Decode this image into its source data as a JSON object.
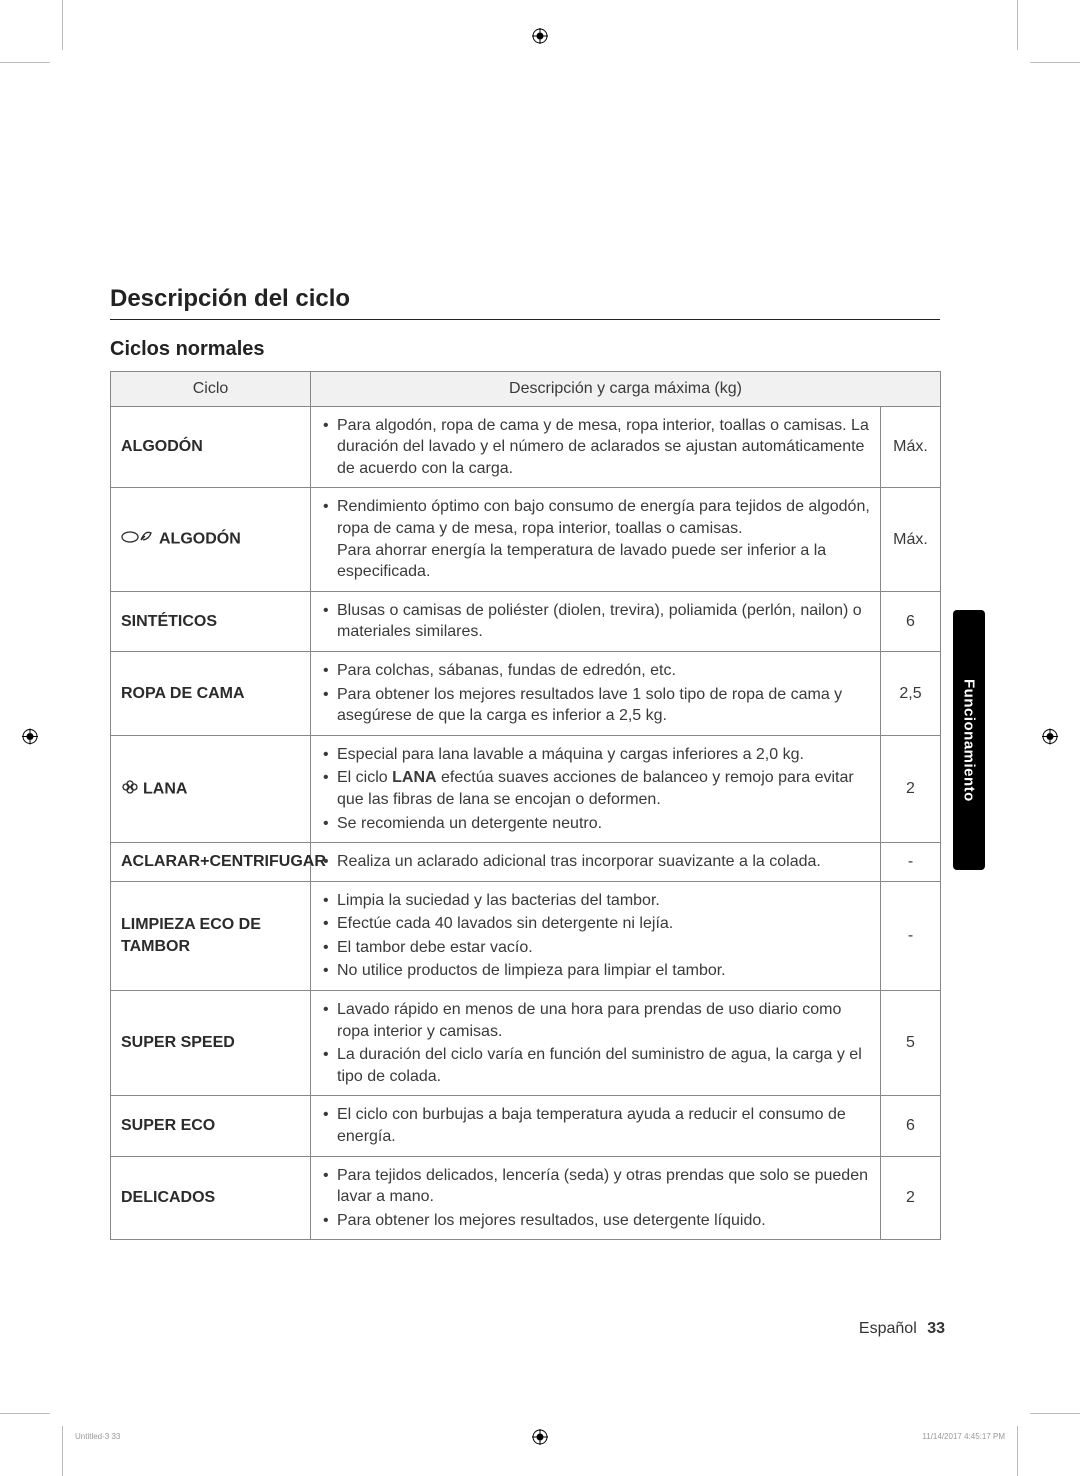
{
  "heading": "Descripción del ciclo",
  "subheading": "Ciclos normales",
  "table": {
    "header_cycle": "Ciclo",
    "header_desc": "Descripción y carga máxima (kg)",
    "rows": [
      {
        "name": "ALGODÓN",
        "icon": null,
        "items": [
          "Para algodón, ropa de cama y de mesa, ropa interior, toallas o camisas. La duración del lavado y el número de aclarados se ajustan automáticamente de acuerdo con la carga."
        ],
        "max": "Máx."
      },
      {
        "name": "ALGODÓN",
        "icon": "eco",
        "items": [
          "Rendimiento óptimo con bajo consumo de energía para tejidos de algodón, ropa de cama y de mesa, ropa interior, toallas o camisas.\nPara ahorrar energía la temperatura de lavado puede ser inferior a la especificada."
        ],
        "max": "Máx."
      },
      {
        "name": "SINTÉTICOS",
        "icon": null,
        "items": [
          "Blusas o camisas de poliéster (diolen, trevira), poliamida (perlón, nailon) o materiales similares."
        ],
        "max": "6"
      },
      {
        "name": "ROPA DE CAMA",
        "icon": null,
        "items": [
          "Para colchas, sábanas, fundas de edredón, etc.",
          "Para obtener los mejores resultados lave 1 solo tipo de ropa de cama y asegúrese de que la carga es inferior a 2,5 kg."
        ],
        "max": "2,5"
      },
      {
        "name": "LANA",
        "icon": "wool",
        "items": [
          "Especial para lana lavable a máquina y cargas inferiores a 2,0 kg.",
          "El ciclo LANA efectúa suaves acciones de balanceo y remojo para evitar que las fibras de lana se encojan o deformen.",
          "Se recomienda un detergente neutro."
        ],
        "max": "2"
      },
      {
        "name": "ACLARAR+CENTRIFUGAR",
        "icon": null,
        "items": [
          "Realiza un aclarado adicional tras incorporar suavizante a la colada."
        ],
        "max": "-"
      },
      {
        "name": "LIMPIEZA ECO DE TAMBOR",
        "icon": null,
        "items": [
          "Limpia la suciedad y las bacterias del tambor.",
          "Efectúe cada 40 lavados sin detergente ni lejía.",
          "El tambor debe estar vacío.",
          "No utilice productos de limpieza para limpiar el tambor."
        ],
        "max": "-"
      },
      {
        "name": "SUPER SPEED",
        "icon": null,
        "items": [
          "Lavado rápido en menos de una hora para prendas de uso diario como ropa interior y camisas.",
          "La duración del ciclo varía en función del suministro de agua, la carga y el tipo de colada."
        ],
        "max": "5"
      },
      {
        "name": "SUPER ECO",
        "icon": null,
        "items": [
          "El ciclo con burbujas a baja temperatura ayuda a reducir el consumo de energía."
        ],
        "max": "6"
      },
      {
        "name": "DELICADOS",
        "icon": null,
        "items": [
          "Para tejidos delicados, lencería (seda) y otras prendas que solo se pueden lavar a mano.",
          "Para obtener los mejores resultados, use detergente líquido."
        ],
        "max": "2"
      }
    ]
  },
  "side_tab": "Funcionamiento",
  "footer_lang": "Español",
  "footer_page": "33",
  "print_left": "Untitled-3   33",
  "print_right": "11/14/2017   4:45:17 PM",
  "colors": {
    "header_bg": "#f1f1f1",
    "border": "#888888",
    "text": "#3a3a3a",
    "tab_bg": "#000000",
    "tab_text": "#ffffff"
  }
}
